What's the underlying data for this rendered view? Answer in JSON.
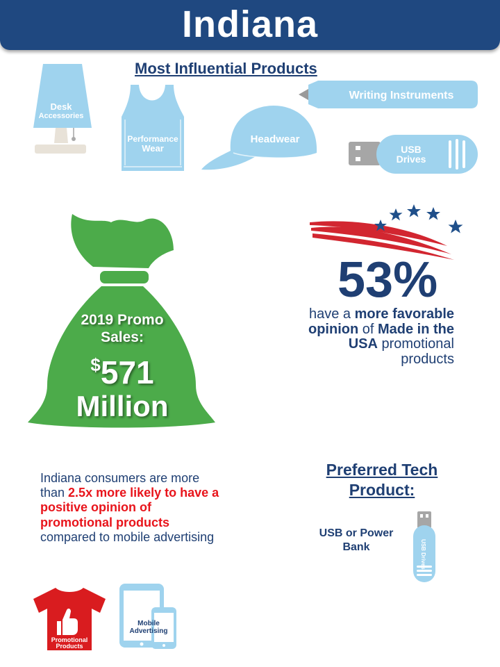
{
  "header": {
    "title": "Indiana"
  },
  "most_influential": {
    "title": "Most Influential Products",
    "items": {
      "desk": [
        "Desk",
        "Accessories"
      ],
      "performance": [
        "Performance",
        "Wear"
      ],
      "headwear": "Headwear",
      "writing": "Writing Instruments",
      "usb": [
        "USB",
        "Drives"
      ]
    }
  },
  "promo_sales": {
    "line1": "2019 Promo",
    "line2": "Sales:",
    "currency": "$",
    "amount": "571",
    "unit": "Million"
  },
  "made_in_usa": {
    "percent": "53%",
    "t1": "have a ",
    "t2": "more favorable opinion",
    "t3": " of ",
    "t4": "Made in the USA",
    "t5": " promotional products"
  },
  "preferred_tech": {
    "title_line1": "Preferred Tech",
    "title_line2": "Product:",
    "value_line1": "USB or Power",
    "value_line2": "Bank",
    "icon_label": "USB Drives"
  },
  "comparison": {
    "t1": "Indiana consumers are more than ",
    "t2": "2.5x more likely to have a positive opinion of promotional products",
    "t3": " compared to mobile advertising",
    "shirt_label": [
      "Promotional",
      "Products"
    ],
    "device_label": [
      "Mobile",
      "Advertising"
    ]
  },
  "colors": {
    "navy": "#1f3f73",
    "header": "#1f4880",
    "light_blue": "#9fd3ee",
    "green": "#4cab4a",
    "red": "#e8141b",
    "flag_red": "#d22630"
  }
}
